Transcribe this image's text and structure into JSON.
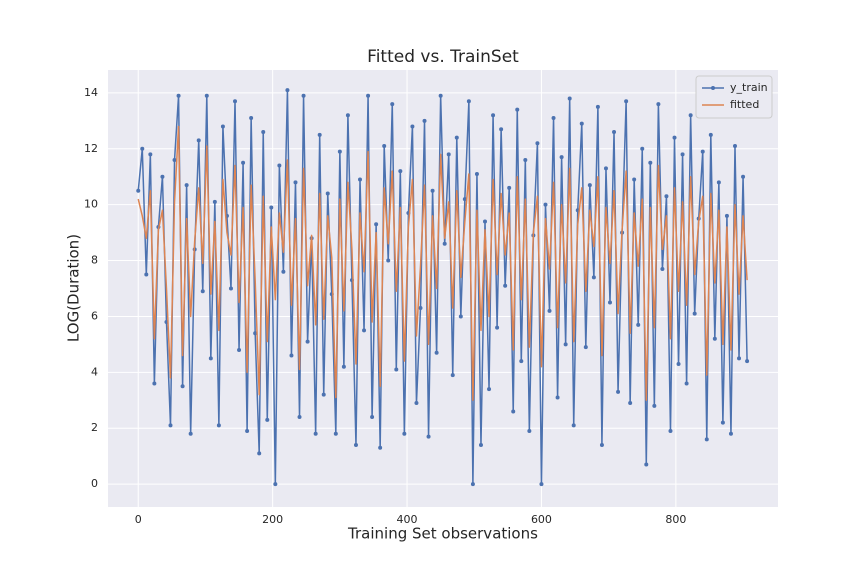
{
  "chart_data": {
    "type": "line",
    "title": "Fitted vs. TrainSet",
    "x_label": "Training Set observations",
    "y_label": "LOG(Duration)",
    "x": [
      0,
      6,
      12,
      18,
      24,
      30,
      36,
      42,
      48,
      54,
      60,
      66,
      72,
      78,
      84,
      90,
      96,
      102,
      108,
      114,
      120,
      126,
      132,
      138,
      144,
      150,
      156,
      162,
      168,
      174,
      180,
      186,
      192,
      198,
      204,
      210,
      216,
      222,
      228,
      234,
      240,
      246,
      252,
      258,
      264,
      270,
      276,
      282,
      288,
      294,
      300,
      306,
      312,
      318,
      324,
      330,
      336,
      342,
      348,
      354,
      360,
      366,
      372,
      378,
      384,
      390,
      396,
      402,
      408,
      414,
      420,
      426,
      432,
      438,
      444,
      450,
      456,
      462,
      468,
      474,
      480,
      486,
      492,
      498,
      504,
      510,
      516,
      522,
      528,
      534,
      540,
      546,
      552,
      558,
      564,
      570,
      576,
      582,
      588,
      594,
      600,
      606,
      612,
      618,
      624,
      630,
      636,
      642,
      648,
      654,
      660,
      666,
      672,
      678,
      684,
      690,
      696,
      702,
      708,
      714,
      720,
      726,
      732,
      738,
      744,
      750,
      756,
      762,
      768,
      774,
      780,
      786,
      792,
      798,
      804,
      810,
      816,
      822,
      828,
      834,
      840,
      846,
      852,
      858,
      864,
      870,
      876,
      882,
      888,
      894,
      900,
      906
    ],
    "series": [
      {
        "name": "y_train",
        "color": "#4c72b0",
        "marker": true,
        "values": [
          10.5,
          12.0,
          7.5,
          11.8,
          3.6,
          9.2,
          11.0,
          5.8,
          2.1,
          11.6,
          13.9,
          3.5,
          10.7,
          1.8,
          8.4,
          12.3,
          6.9,
          13.9,
          4.5,
          10.1,
          2.1,
          12.8,
          9.6,
          7.0,
          13.7,
          4.8,
          11.5,
          1.9,
          13.1,
          5.4,
          1.1,
          12.6,
          2.3,
          9.9,
          0.0,
          11.4,
          7.6,
          14.1,
          4.6,
          10.8,
          2.4,
          13.9,
          5.1,
          8.8,
          1.8,
          12.5,
          3.2,
          10.4,
          6.8,
          1.8,
          11.9,
          4.2,
          13.2,
          7.3,
          1.4,
          10.9,
          5.5,
          13.9,
          2.4,
          9.3,
          1.3,
          12.1,
          8.0,
          13.6,
          4.1,
          11.2,
          1.8,
          9.7,
          12.8,
          2.9,
          6.3,
          13.0,
          1.7,
          10.5,
          4.7,
          13.9,
          8.6,
          11.8,
          3.9,
          12.4,
          6.0,
          10.2,
          13.7,
          0.0,
          11.1,
          1.4,
          9.4,
          3.4,
          13.2,
          5.6,
          12.7,
          7.1,
          10.6,
          2.6,
          13.4,
          4.4,
          11.6,
          1.9,
          8.9,
          12.2,
          0.0,
          10.0,
          6.2,
          13.1,
          3.1,
          11.7,
          5.0,
          13.8,
          2.1,
          9.8,
          12.9,
          4.9,
          10.7,
          7.4,
          13.5,
          1.4,
          11.3,
          6.5,
          12.6,
          3.3,
          9.0,
          13.7,
          2.9,
          10.9,
          5.7,
          12.0,
          0.7,
          11.5,
          2.8,
          13.6,
          7.7,
          10.3,
          1.9,
          12.4,
          4.3,
          11.8,
          3.6,
          13.2,
          6.1,
          9.5,
          11.9,
          1.6,
          12.5,
          5.2,
          10.8,
          2.2,
          9.6,
          1.8,
          12.1,
          4.5,
          11.0,
          4.4
        ]
      },
      {
        "name": "fitted",
        "color": "#dd8452",
        "marker": false,
        "values": [
          10.2,
          9.6,
          8.8,
          10.5,
          5.2,
          9.1,
          9.8,
          7.0,
          3.8,
          10.1,
          12.8,
          4.6,
          9.5,
          6.0,
          8.7,
          10.6,
          7.9,
          12.1,
          6.8,
          9.4,
          5.5,
          10.9,
          9.0,
          8.2,
          11.4,
          6.5,
          9.9,
          4.0,
          10.7,
          7.3,
          3.2,
          10.3,
          5.1,
          9.2,
          6.6,
          9.7,
          8.3,
          11.6,
          6.4,
          9.5,
          4.1,
          11.3,
          7.1,
          8.9,
          5.7,
          10.4,
          5.9,
          9.6,
          8.1,
          3.1,
          10.2,
          6.2,
          10.8,
          8.4,
          4.3,
          9.7,
          7.6,
          11.9,
          5.8,
          9.0,
          3.5,
          10.6,
          8.6,
          11.2,
          6.9,
          9.9,
          4.4,
          9.2,
          10.9,
          5.3,
          7.8,
          10.7,
          5.0,
          9.6,
          7.0,
          11.8,
          8.8,
          10.1,
          6.3,
          10.5,
          7.4,
          9.4,
          11.1,
          3.0,
          9.8,
          5.5,
          9.1,
          6.0,
          10.9,
          7.5,
          10.4,
          8.2,
          9.7,
          4.8,
          11.0,
          6.6,
          10.2,
          4.9,
          9.0,
          10.3,
          4.2,
          9.5,
          7.7,
          10.8,
          5.6,
          10.0,
          7.2,
          11.3,
          5.1,
          9.3,
          10.6,
          6.9,
          9.8,
          8.5,
          11.0,
          4.6,
          9.9,
          7.9,
          10.5,
          6.1,
          9.1,
          11.2,
          5.4,
          9.7,
          7.8,
          10.2,
          3.0,
          9.9,
          5.6,
          11.4,
          8.4,
          9.6,
          5.2,
          10.6,
          6.9,
          10.1,
          6.4,
          11.0,
          7.5,
          9.4,
          10.3,
          3.9,
          10.4,
          7.2,
          9.8,
          5.0,
          9.2,
          4.8,
          10.0,
          6.8,
          9.6,
          7.3
        ]
      }
    ],
    "xlim": [
      -45,
      952
    ],
    "ylim": [
      -0.82,
      14.82
    ],
    "xticks": [
      0,
      200,
      400,
      600,
      800
    ],
    "yticks": [
      0,
      2,
      4,
      6,
      8,
      10,
      12,
      14
    ],
    "grid": true,
    "legend": "upper right"
  }
}
